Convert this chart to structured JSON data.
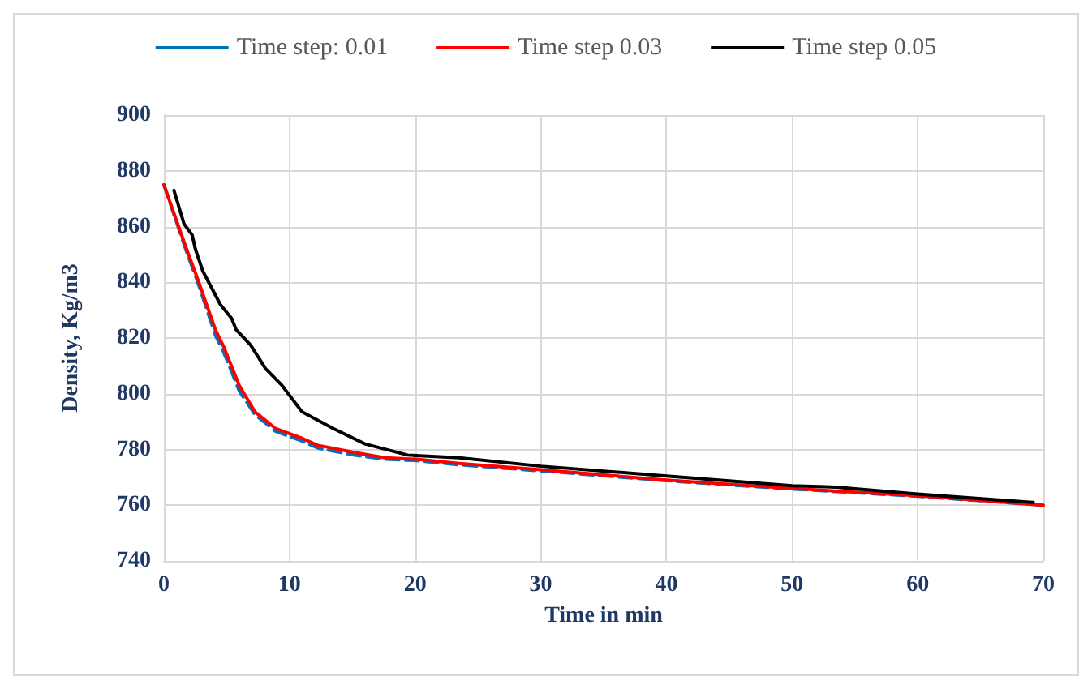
{
  "chart_data": {
    "type": "line",
    "xlabel": "Time in min",
    "ylabel": "Density, Kg/m3",
    "xlim": [
      0,
      70
    ],
    "ylim": [
      740,
      900
    ],
    "xticks": [
      0,
      10,
      20,
      30,
      40,
      50,
      60,
      70
    ],
    "yticks": [
      740,
      760,
      780,
      800,
      820,
      840,
      860,
      880,
      900
    ],
    "grid": true,
    "legend": "top",
    "marker": "none",
    "series": [
      {
        "name": "Time step: 0.01",
        "color": "#0070c0",
        "line_style": "dashed",
        "x": [
          0,
          1.8,
          2.7,
          4.1,
          4.75,
          6,
          7.25,
          8.9,
          11,
          12.25,
          15.1,
          17.6,
          20.1,
          23.5,
          30,
          40,
          50,
          60,
          70
        ],
        "values": [
          875,
          851,
          840,
          821,
          815,
          801,
          792.5,
          786.5,
          783,
          780.5,
          778,
          776.5,
          776,
          774.5,
          772.3,
          768.8,
          765.8,
          763.2,
          760
        ]
      },
      {
        "name": "Time step 0.03",
        "color": "#ff0000",
        "line_style": "solid",
        "x": [
          0,
          1.8,
          2.7,
          4.1,
          4.75,
          6,
          7.25,
          8.9,
          11,
          12.25,
          15.1,
          17.6,
          20.1,
          23.5,
          30,
          40,
          50,
          60,
          70
        ],
        "values": [
          875,
          852,
          841,
          823,
          817,
          803,
          793.5,
          787.5,
          784,
          781.5,
          779,
          777,
          776.5,
          775,
          772.7,
          769,
          766,
          763.4,
          760
        ]
      },
      {
        "name": "Time step 0.05",
        "color": "#000000",
        "line_style": "solid",
        "x": [
          0.8,
          1.6,
          2.25,
          2.5,
          3.1,
          4.5,
          5.4,
          5.75,
          6.9,
          8.1,
          9.4,
          11,
          13.5,
          16,
          19.4,
          23.5,
          30,
          40,
          50,
          53.5,
          60,
          69.2
        ],
        "values": [
          873,
          861,
          857,
          852,
          844,
          832,
          827,
          823,
          817.5,
          809,
          803,
          793.5,
          787.5,
          782,
          778,
          777,
          774,
          770.5,
          767,
          766.5,
          764,
          761
        ]
      }
    ]
  }
}
